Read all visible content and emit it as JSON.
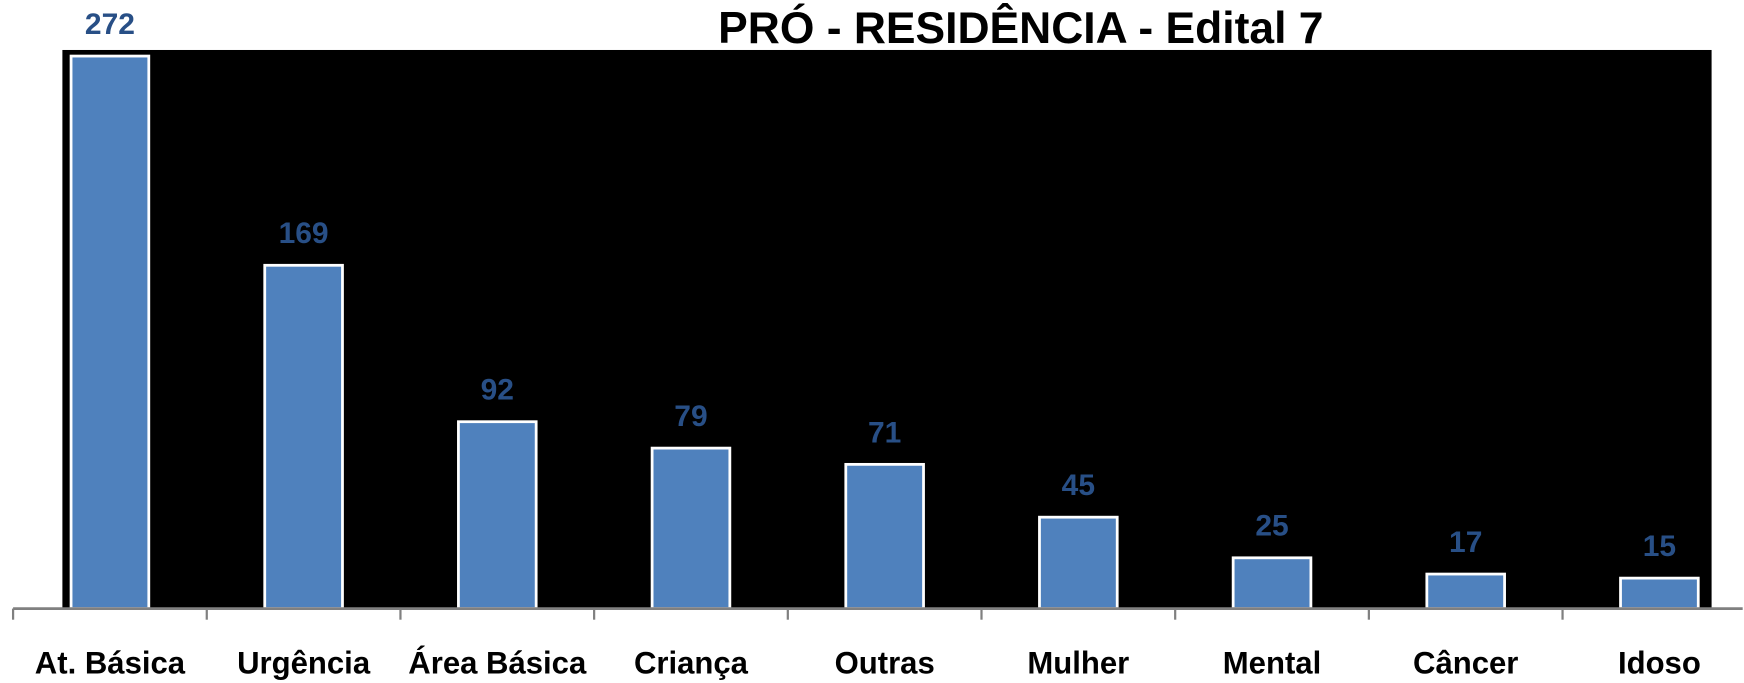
{
  "chart_data": {
    "type": "bar",
    "title": "PRÓ - RESIDÊNCIA - Edital 7",
    "categories": [
      "At. Básica",
      "Urgência",
      "Área Básica",
      "Criança",
      "Outras",
      "Mulher",
      "Mental",
      "Câncer",
      "Idoso"
    ],
    "values": [
      272,
      169,
      92,
      79,
      71,
      45,
      25,
      17,
      15
    ],
    "color": "#4f81bd",
    "ylim": [
      0,
      275
    ]
  }
}
